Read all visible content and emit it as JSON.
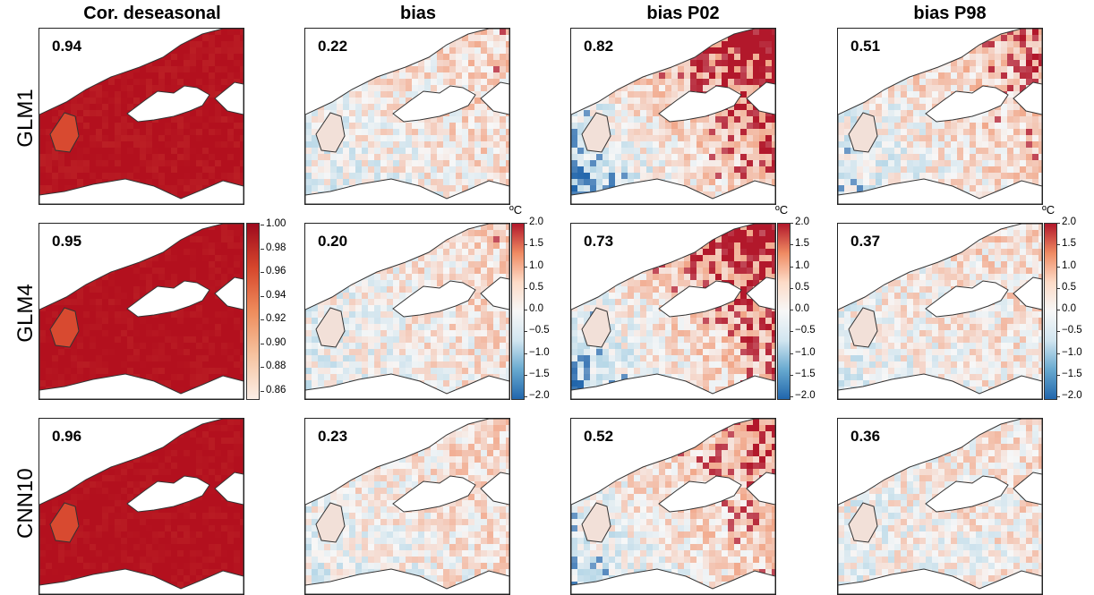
{
  "columns": [
    "Cor. deseasonal",
    "bias",
    "bias P02",
    "bias P98"
  ],
  "rows": [
    "GLM1",
    "GLM4",
    "CNN10"
  ],
  "scores": [
    [
      "0.94",
      "0.22",
      "0.82",
      "0.51"
    ],
    [
      "0.95",
      "0.20",
      "0.73",
      "0.37"
    ],
    [
      "0.96",
      "0.23",
      "0.52",
      "0.36"
    ]
  ],
  "panel_intensity": [
    [
      0.94,
      0.25,
      0.85,
      0.45
    ],
    [
      0.97,
      0.22,
      0.75,
      0.2
    ],
    [
      0.98,
      0.24,
      0.55,
      0.15
    ]
  ],
  "corr_colorbar": {
    "ticks": [
      "1.00",
      "0.98",
      "0.96",
      "0.94",
      "0.92",
      "0.90",
      "0.88",
      "0.86"
    ],
    "colors": [
      "#fbeee6",
      "#f6c3a0",
      "#ee8c5c",
      "#d6462c",
      "#9e0a1e"
    ]
  },
  "bias_colorbar": {
    "unit": "ºC",
    "ticks": [
      "2.0",
      "1.5",
      "1.0",
      "0.5",
      "0.0",
      "−0.5",
      "−1.0",
      "−1.5",
      "−2.0"
    ],
    "colors": [
      "#b2182b",
      "#ef8a62",
      "#fddbc7",
      "#f7f7f7",
      "#d1e5f0",
      "#67a9cf",
      "#2166ac"
    ]
  }
}
